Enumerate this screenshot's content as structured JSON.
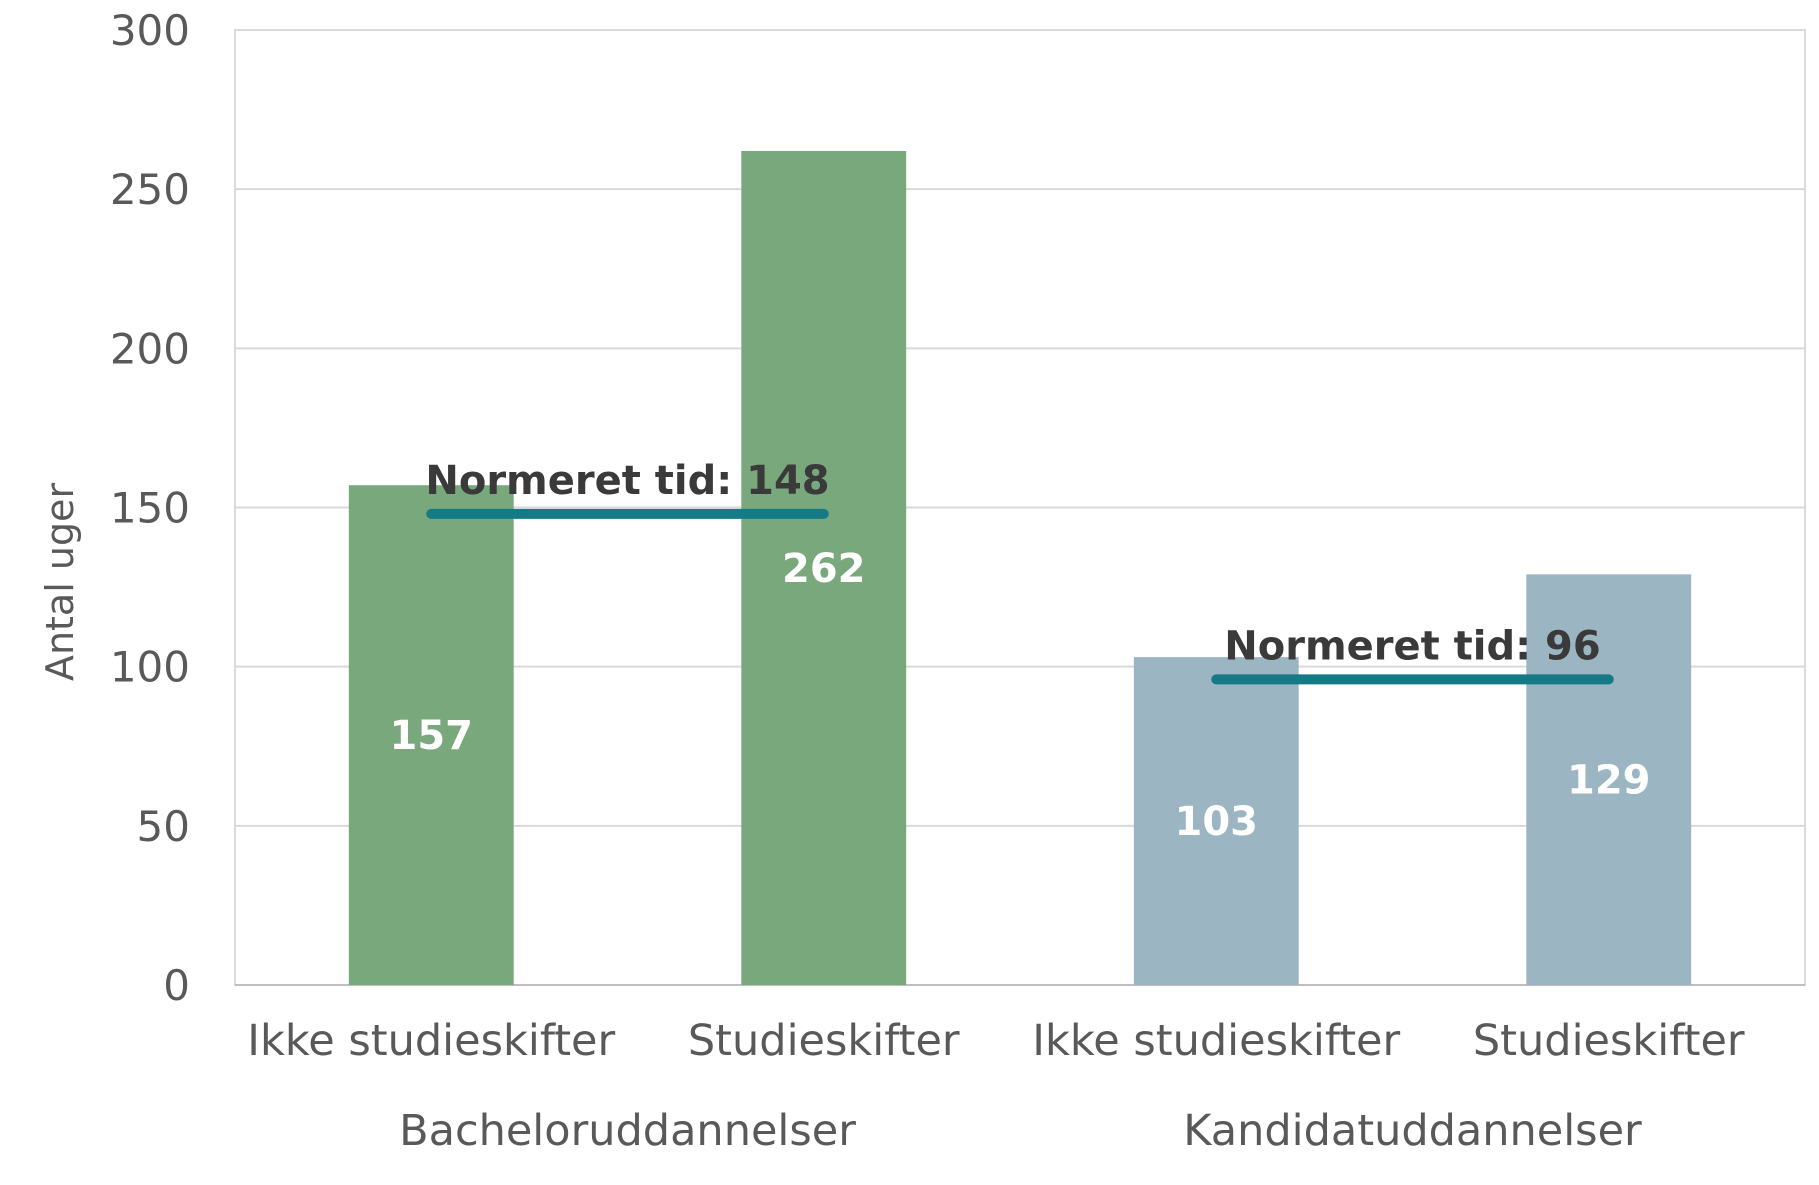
{
  "chart_data": {
    "type": "bar",
    "title": "",
    "xlabel": "",
    "ylabel": "Antal uger",
    "ylim": [
      0,
      300
    ],
    "yticks": [
      0,
      50,
      100,
      150,
      200,
      250,
      300
    ],
    "grid": true,
    "legend": "none",
    "groups": [
      {
        "label": "Bacheloruddannelser",
        "color": "#78a87b",
        "norm_label": "Normeret tid: 148",
        "norm_value": 148,
        "bars": [
          {
            "category": "Ikke studieskifter",
            "value": 157,
            "value_label": "157"
          },
          {
            "category": "Studieskifter",
            "value": 262,
            "value_label": "262"
          }
        ]
      },
      {
        "label": "Kandidatuddannelser",
        "color": "#9bb5c2",
        "norm_label": "Normeret tid: 96",
        "norm_value": 96,
        "bars": [
          {
            "category": "Ikke studieskifter",
            "value": 103,
            "value_label": "103"
          },
          {
            "category": "Studieskifter",
            "value": 129,
            "value_label": "129"
          }
        ]
      }
    ],
    "norm_line_color": "#137a86"
  }
}
